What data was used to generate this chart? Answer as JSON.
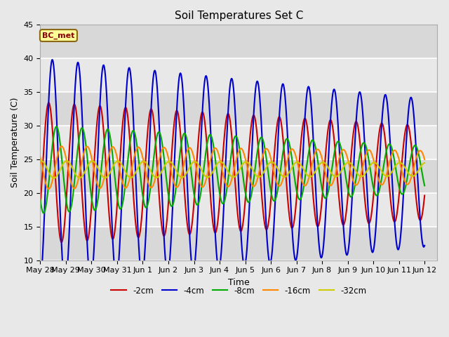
{
  "title": "Soil Temperatures Set C",
  "xlabel": "Time",
  "ylabel": "Soil Temperature (C)",
  "ylim": [
    10,
    45
  ],
  "background_color": "#e8e8e8",
  "annotation": "BC_met",
  "legend": [
    "-2cm",
    "-4cm",
    "-8cm",
    "-16cm",
    "-32cm"
  ],
  "colors": [
    "#cc0000",
    "#0000cc",
    "#00aa00",
    "#ff8800",
    "#cccc00"
  ],
  "linewidth": 1.5,
  "x_tick_labels": [
    "May 28",
    "May 29",
    "May 30",
    "May 31",
    "Jun 1",
    "Jun 2",
    "Jun 3",
    "Jun 4",
    "Jun 5",
    "Jun 6",
    "Jun 7",
    "Jun 8",
    "Jun 9",
    "Jun 10",
    "Jun 11",
    "Jun 12"
  ],
  "grid_color": "#ffffff",
  "title_fontsize": 11,
  "label_fontsize": 9,
  "tick_fontsize": 8,
  "bases": [
    23.0,
    23.0,
    23.5,
    23.8,
    23.5
  ],
  "amps_start": [
    10.5,
    17.0,
    6.5,
    3.2,
    1.3
  ],
  "amps_end": [
    7.0,
    11.0,
    3.5,
    2.5,
    1.0
  ],
  "phase_lags": [
    0.08,
    0.22,
    0.38,
    0.58,
    0.78
  ]
}
